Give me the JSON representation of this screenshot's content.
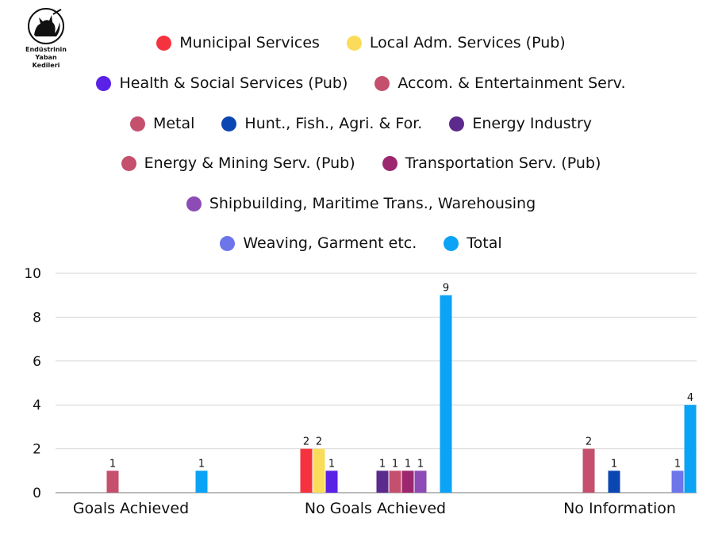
{
  "logo": {
    "lines": [
      "Endüstrinin",
      "Yaban",
      "Kedileri"
    ]
  },
  "chart_data": {
    "type": "bar",
    "categories": [
      "Goals Achieved",
      "No Goals Achieved",
      "No Information"
    ],
    "ylim": [
      0,
      10
    ],
    "yticks": [
      0,
      2,
      4,
      6,
      8,
      10
    ],
    "grid": true,
    "legend_position": "top",
    "series": [
      {
        "name": "Municipal Services",
        "color": "#f5333f",
        "values": [
          null,
          2,
          null
        ]
      },
      {
        "name": "Local Adm. Services (Pub)",
        "color": "#fbdc5a",
        "values": [
          null,
          2,
          null
        ]
      },
      {
        "name": "Health & Social Services (Pub)",
        "color": "#5b21e6",
        "values": [
          null,
          1,
          null
        ]
      },
      {
        "name": "Accom. & Entertainment Serv.",
        "color": "#c4506e",
        "values": [
          1,
          null,
          null
        ]
      },
      {
        "name": "Metal",
        "color": "#c4506e",
        "values": [
          null,
          null,
          2
        ]
      },
      {
        "name": "Hunt., Fish., Agri. & For.",
        "color": "#0b47b3",
        "values": [
          null,
          null,
          1
        ]
      },
      {
        "name": "Energy Industry",
        "color": "#5c2a8c",
        "values": [
          null,
          1,
          null
        ]
      },
      {
        "name": "Energy & Mining Serv. (Pub)",
        "color": "#c4506e",
        "values": [
          null,
          1,
          null
        ]
      },
      {
        "name": "Transportation Serv. (Pub)",
        "color": "#9c276f",
        "values": [
          null,
          1,
          null
        ]
      },
      {
        "name": "Shipbuilding, Maritime Trans., Warehousing",
        "color": "#8c4bb5",
        "values": [
          null,
          1,
          null
        ]
      },
      {
        "name": "Weaving, Garment etc.",
        "color": "#6c75ea",
        "values": [
          null,
          null,
          1
        ]
      },
      {
        "name": "Total",
        "color": "#0aa3f5",
        "values": [
          1,
          9,
          4
        ]
      }
    ]
  }
}
